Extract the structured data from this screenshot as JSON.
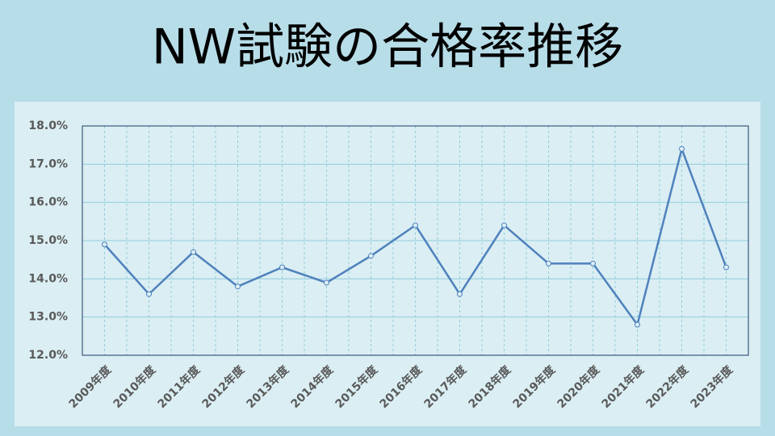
{
  "chart_data": {
    "type": "line",
    "title": "NW試験の合格率推移",
    "categories": [
      "2009年度",
      "2010年度",
      "2011年度",
      "2012年度",
      "2013年度",
      "2014年度",
      "2015年度",
      "2016年度",
      "2017年度",
      "2018年度",
      "2019年度",
      "2020年度",
      "2021年度",
      "2022年度",
      "2023年度"
    ],
    "series": [
      {
        "color": "#4f81bd",
        "values": [
          14.9,
          13.6,
          14.7,
          13.8,
          14.3,
          13.9,
          14.6,
          15.4,
          13.6,
          15.4,
          14.4,
          14.4,
          12.8,
          17.4,
          14.3
        ]
      }
    ],
    "ylim": [
      12,
      18
    ],
    "yticks": [
      {
        "value": 12,
        "label": "12.0%"
      },
      {
        "value": 13,
        "label": "13.0%"
      },
      {
        "value": 14,
        "label": "14.0%"
      },
      {
        "value": 15,
        "label": "15.0%"
      },
      {
        "value": 16,
        "label": "16.0%"
      },
      {
        "value": 17,
        "label": "17.0%"
      },
      {
        "value": 18,
        "label": "18.0%"
      }
    ],
    "grid": true
  }
}
